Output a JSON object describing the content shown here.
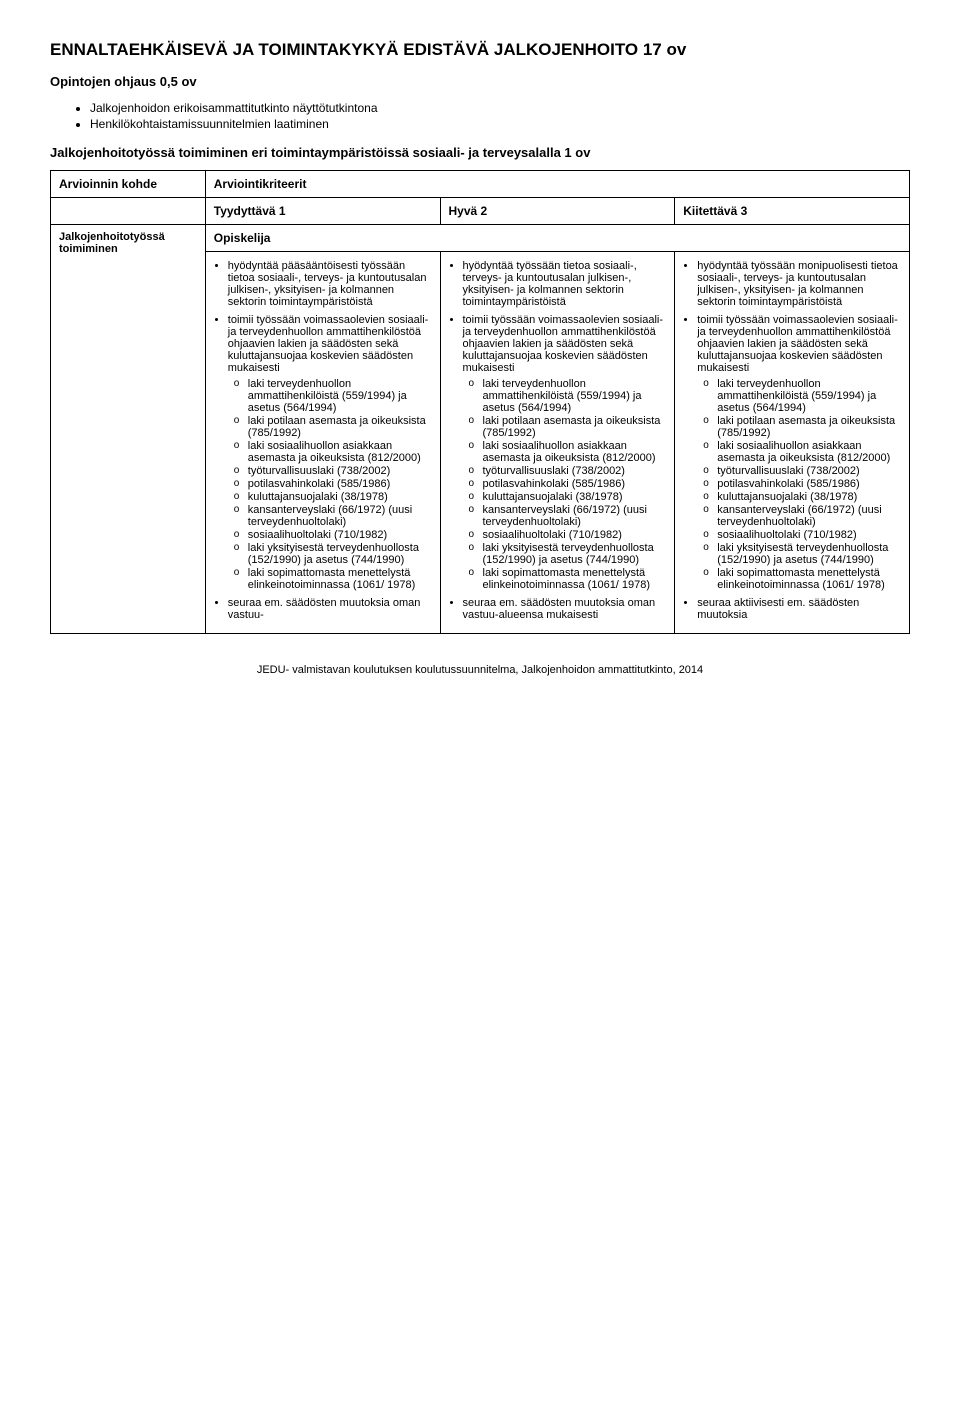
{
  "title": "ENNALTAEHKÄISEVÄ JA TOIMINTAKYKYÄ EDISTÄVÄ JALKOJENHOITO 17 ov",
  "sub1": "Opintojen ohjaus 0,5 ov",
  "intro_bullets": [
    "Jalkojenhoidon erikoisammattitutkinto näyttötutkintona",
    "Henkilökohtaistamissuunnitelmien laatiminen"
  ],
  "sub2": "Jalkojenhoitotyössä toimiminen eri toimintaympäristöissä sosiaali- ja terveysalalla 1 ov",
  "header_row": {
    "c0": "Arvioinnin kohde",
    "c1": "Arviointikriteerit"
  },
  "level_row": {
    "c1": "Tyydyttävä 1",
    "c2": "Hyvä 2",
    "c3": "Kiitettävä 3"
  },
  "row_label": "Jalkojenhoitotyössä toimiminen",
  "opiskelija": "Opiskelija",
  "col1": {
    "b1": "hyödyntää pääsääntöisesti työssään tietoa sosiaali-, terveys- ja kuntoutusalan julkisen-, yksityisen- ja kolmannen sektorin toimintaympäristöistä",
    "b2": "toimii työssään voimassaolevien sosiaali- ja terveydenhuollon ammattihenkilöstöä ohjaavien lakien ja säädösten sekä kuluttajansuojaa koskevien säädösten mukaisesti",
    "sub": [
      "laki terveydenhuollon ammattihenkilöistä (559/1994) ja asetus (564/1994)",
      "laki potilaan asemasta ja oikeuksista (785/1992)",
      "laki sosiaalihuollon asiakkaan asemasta ja oikeuksista (812/2000)",
      "työturvallisuuslaki (738/2002)",
      "potilasvahinkolaki (585/1986)",
      "kuluttajansuojalaki (38/1978)",
      "kansanterveyslaki (66/1972) (uusi terveydenhuoltolaki)",
      "sosiaalihuoltolaki (710/1982)",
      "laki yksityisestä terveydenhuollosta (152/1990) ja asetus (744/1990)",
      "laki sopimattomasta menettelystä elinkeinotoiminnassa (1061/ 1978)"
    ],
    "b3": "seuraa em. säädösten muutoksia oman vastuu-"
  },
  "col2": {
    "b1": "hyödyntää työssään tietoa sosiaali-, terveys- ja kuntoutusalan julkisen-, yksityisen- ja kolmannen sektorin toimintaympäristöistä",
    "b2": "toimii työssään voimassaolevien sosiaali- ja terveydenhuollon ammattihenkilöstöä ohjaavien lakien ja säädösten sekä kuluttajansuojaa koskevien säädösten mukaisesti",
    "sub": [
      "laki terveydenhuollon ammattihenkilöistä (559/1994) ja asetus (564/1994)",
      "laki potilaan asemasta ja oikeuksista (785/1992)",
      "laki sosiaalihuollon asiakkaan asemasta ja oikeuksista (812/2000)",
      "työturvallisuuslaki (738/2002)",
      "potilasvahinkolaki (585/1986)",
      "kuluttajansuojalaki (38/1978)",
      "kansanterveyslaki (66/1972) (uusi terveydenhuoltolaki)",
      "sosiaalihuoltolaki (710/1982)",
      "laki yksityisestä terveydenhuollosta (152/1990) ja asetus (744/1990)",
      "laki sopimattomasta menettelystä elinkeinotoiminnassa (1061/ 1978)"
    ],
    "b3": "seuraa em. säädösten muutoksia oman vastuu-alueensa mukaisesti"
  },
  "col3": {
    "b1": "hyödyntää työssään monipuolisesti tietoa sosiaali-, terveys- ja kuntoutusalan julkisen-, yksityisen- ja kolmannen sektorin toimintaympäristöistä",
    "b2": "toimii työssään voimassaolevien sosiaali- ja terveydenhuollon ammattihenkilöstöä ohjaavien lakien ja säädösten sekä kuluttajansuojaa koskevien säädösten mukaisesti",
    "sub": [
      "laki terveydenhuollon ammattihenkilöistä (559/1994) ja asetus (564/1994)",
      "laki potilaan asemasta ja oikeuksista (785/1992)",
      "laki sosiaalihuollon asiakkaan asemasta ja oikeuksista (812/2000)",
      "työturvallisuuslaki (738/2002)",
      "potilasvahinkolaki (585/1986)",
      "kuluttajansuojalaki (38/1978)",
      "kansanterveyslaki (66/1972) (uusi terveydenhuoltolaki)",
      "sosiaalihuoltolaki (710/1982)",
      "laki yksityisestä terveydenhuollosta (152/1990) ja asetus (744/1990)",
      "laki sopimattomasta menettelystä elinkeinotoiminnassa (1061/ 1978)"
    ],
    "b3": "seuraa aktiivisesti em. säädösten muutoksia"
  },
  "footer": "JEDU- valmistavan koulutuksen koulutussuunnitelma, Jalkojenhoidon ammattitutkinto, 2014"
}
